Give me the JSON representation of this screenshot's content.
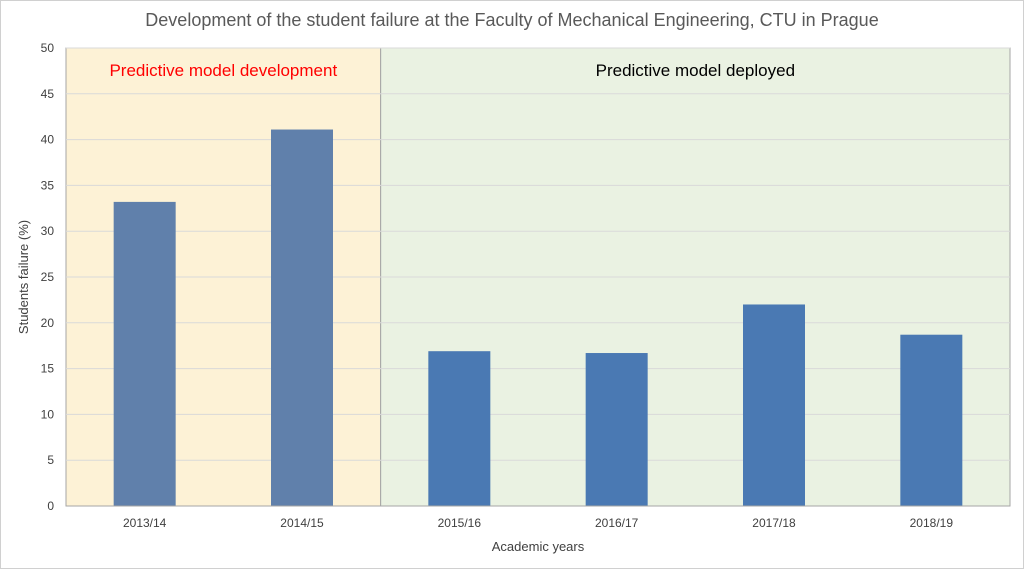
{
  "chart_data": {
    "type": "bar",
    "title": "Development of the student failure at the Faculty of Mechanical Engineering, CTU in Prague",
    "xlabel": "Academic years",
    "ylabel": "Students failure (%)",
    "ylim": [
      0,
      50
    ],
    "yticks": [
      0,
      5,
      10,
      15,
      20,
      25,
      30,
      35,
      40,
      45,
      50
    ],
    "ytick_labels": [
      "0",
      "5",
      "10",
      "15",
      "20",
      "25",
      "30",
      "35",
      "40",
      "45",
      "50"
    ],
    "grid": true,
    "categories": [
      "2013/14",
      "2014/15",
      "2015/16",
      "2016/17",
      "2017/18",
      "2018/19"
    ],
    "values": [
      33.2,
      41.1,
      16.9,
      16.7,
      22.0,
      18.7
    ],
    "bar_colors": [
      "#6080ab",
      "#6080ab",
      "#4a79b3",
      "#4a79b3",
      "#4a79b3",
      "#4a79b3"
    ],
    "regions": [
      {
        "label": "Predictive model development",
        "label_color": "#ff0000",
        "fill": "#fdf2d6",
        "from_category": 0,
        "to_category": 1
      },
      {
        "label": "Predictive model deployed",
        "label_color": "#000000",
        "fill": "#eaf2e2",
        "from_category": 2,
        "to_category": 5
      }
    ]
  }
}
